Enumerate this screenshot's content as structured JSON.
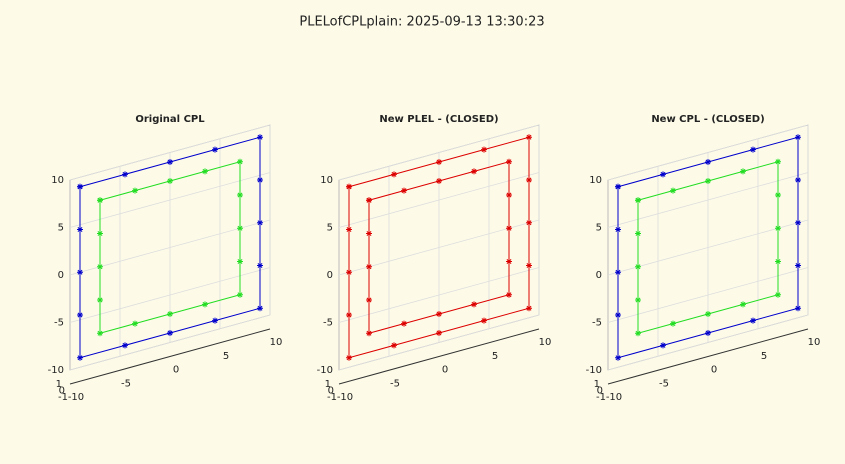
{
  "figure_title": "PLELofCPLplain: 2025-09-13 13:30:23",
  "chart_data": [
    {
      "type": "line",
      "title": "Original CPL",
      "xlim": [
        -10,
        10
      ],
      "ylim": [
        -10,
        10
      ],
      "zlim": [
        -1,
        1
      ],
      "xticks": [
        -10,
        -5,
        0,
        5,
        10
      ],
      "yticks": [
        -10,
        -5,
        0,
        5,
        10
      ],
      "zticks": [
        -1,
        0,
        1
      ],
      "grid": true,
      "series": [
        {
          "color": "#0000cc",
          "x": [
            -9,
            -4.5,
            0,
            4.5,
            9,
            9,
            9,
            9,
            9,
            4.5,
            0,
            -4.5,
            -9,
            -9,
            -9,
            -9,
            -9
          ],
          "y": [
            9,
            9,
            9,
            9,
            9,
            4.5,
            0,
            -4.5,
            -9,
            -9,
            -9,
            -9,
            -9,
            -4.5,
            0,
            4.5,
            9
          ]
        },
        {
          "color": "#22dd22",
          "x": [
            -7,
            -3.5,
            0,
            3.5,
            7,
            7,
            7,
            7,
            7,
            3.5,
            0,
            -3.5,
            -7,
            -7,
            -7,
            -7,
            -7
          ],
          "y": [
            7,
            7,
            7,
            7,
            7,
            3.5,
            0,
            -3.5,
            -7,
            -7,
            -7,
            -7,
            -7,
            -3.5,
            0,
            3.5,
            7
          ]
        }
      ]
    },
    {
      "type": "line",
      "title": "New PLEL - (CLOSED)",
      "xlim": [
        -10,
        10
      ],
      "ylim": [
        -10,
        10
      ],
      "zlim": [
        -1,
        1
      ],
      "xticks": [
        -10,
        -5,
        0,
        5,
        10
      ],
      "yticks": [
        -10,
        -5,
        0,
        5,
        10
      ],
      "zticks": [
        -1,
        0,
        1
      ],
      "grid": true,
      "series": [
        {
          "color": "#dd0000",
          "x": [
            -9,
            -4.5,
            0,
            4.5,
            9,
            9,
            9,
            9,
            9,
            4.5,
            0,
            -4.5,
            -9,
            -9,
            -9,
            -9,
            -9
          ],
          "y": [
            9,
            9,
            9,
            9,
            9,
            4.5,
            0,
            -4.5,
            -9,
            -9,
            -9,
            -9,
            -9,
            -4.5,
            0,
            4.5,
            9
          ]
        },
        {
          "color": "#dd0000",
          "x": [
            -7,
            -3.5,
            0,
            3.5,
            7,
            7,
            7,
            7,
            7,
            3.5,
            0,
            -3.5,
            -7,
            -7,
            -7,
            -7,
            -7
          ],
          "y": [
            7,
            7,
            7,
            7,
            7,
            3.5,
            0,
            -3.5,
            -7,
            -7,
            -7,
            -7,
            -7,
            -3.5,
            0,
            3.5,
            7
          ]
        }
      ]
    },
    {
      "type": "line",
      "title": "New CPL - (CLOSED)",
      "xlim": [
        -10,
        10
      ],
      "ylim": [
        -10,
        10
      ],
      "zlim": [
        -1,
        1
      ],
      "xticks": [
        -10,
        -5,
        0,
        5,
        10
      ],
      "yticks": [
        -10,
        -5,
        0,
        5,
        10
      ],
      "zticks": [
        -1,
        0,
        1
      ],
      "grid": true,
      "series": [
        {
          "color": "#0000cc",
          "x": [
            -9,
            -4.5,
            0,
            4.5,
            9,
            9,
            9,
            9,
            9,
            4.5,
            0,
            -4.5,
            -9,
            -9,
            -9,
            -9,
            -9
          ],
          "y": [
            9,
            9,
            9,
            9,
            9,
            4.5,
            0,
            -4.5,
            -9,
            -9,
            -9,
            -9,
            -9,
            -4.5,
            0,
            4.5,
            9
          ]
        },
        {
          "color": "#22dd22",
          "x": [
            -7,
            -3.5,
            0,
            3.5,
            7,
            7,
            7,
            7,
            7,
            3.5,
            0,
            -3.5,
            -7,
            -7,
            -7,
            -7,
            -7
          ],
          "y": [
            7,
            7,
            7,
            7,
            7,
            3.5,
            0,
            -3.5,
            -7,
            -7,
            -7,
            -7,
            -7,
            -3.5,
            0,
            3.5,
            7
          ]
        }
      ]
    }
  ]
}
